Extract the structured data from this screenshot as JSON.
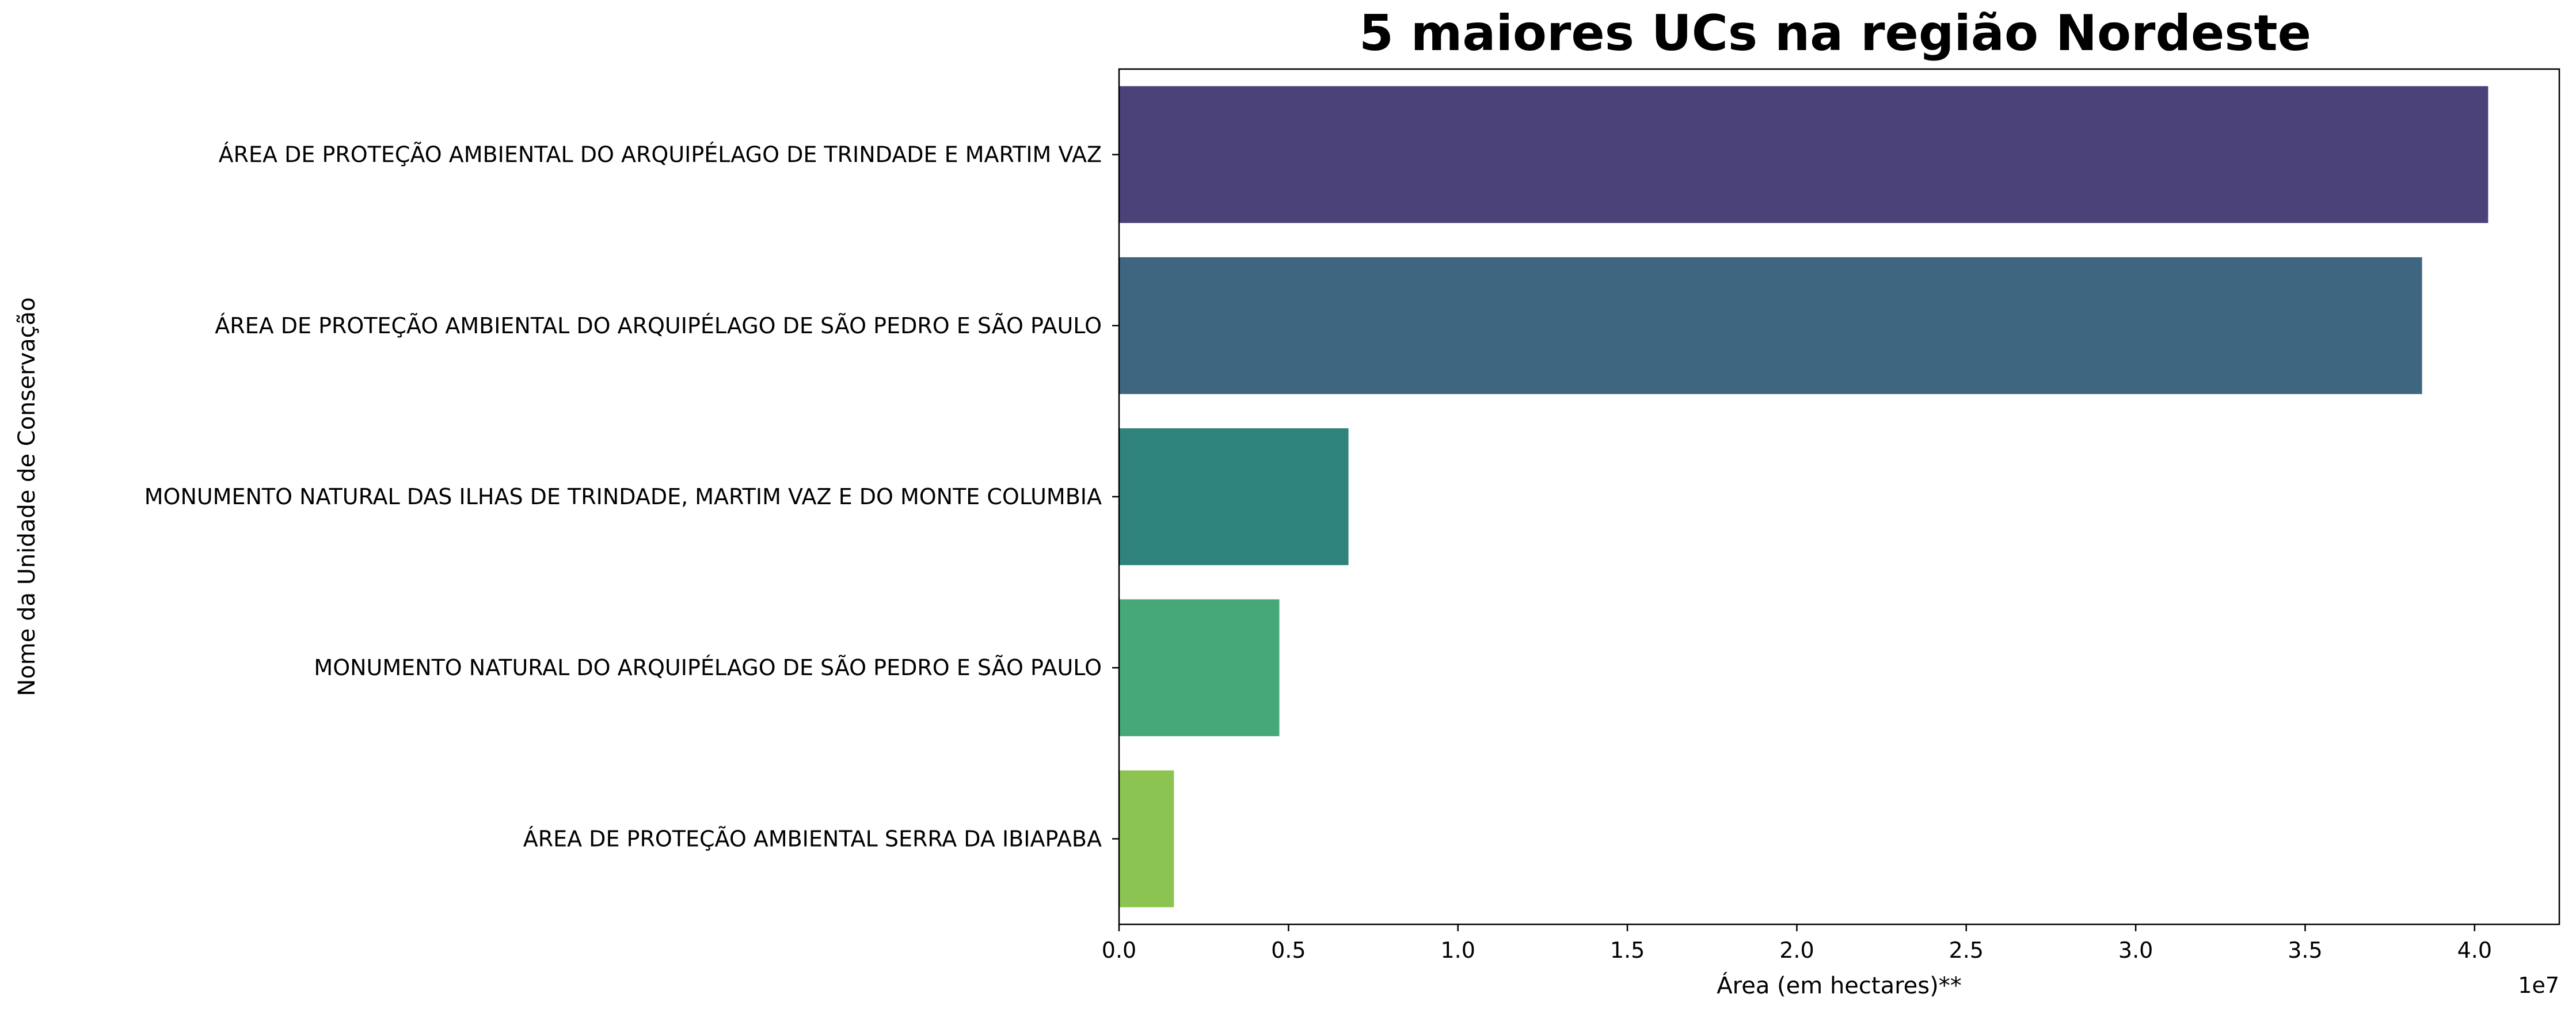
{
  "chart_data": {
    "type": "bar",
    "orientation": "horizontal",
    "title": "5 maiores UCs na região Nordeste",
    "xlabel": "Área (em hectares)**",
    "ylabel": "Nome da Unidade de Conservação",
    "x_offset_label": "1e7",
    "x_ticks": [
      "0.0",
      "0.5",
      "1.0",
      "1.5",
      "2.0",
      "2.5",
      "3.0",
      "3.5",
      "4.0"
    ],
    "xlim": [
      0,
      42500000
    ],
    "grid": false,
    "categories": [
      "ÁREA DE PROTEÇÃO AMBIENTAL DO ARQUIPÉLAGO DE TRINDADE E MARTIM VAZ",
      "ÁREA DE PROTEÇÃO AMBIENTAL DO ARQUIPÉLAGO DE SÃO PEDRO E SÃO PAULO",
      "MONUMENTO NATURAL DAS ILHAS DE TRINDADE, MARTIM VAZ E DO MONTE COLUMBIA",
      "MONUMENTO NATURAL DO ARQUIPÉLAGO DE SÃO PEDRO E SÃO PAULO",
      "ÁREA DE PROTEÇÃO AMBIENTAL SERRA DA IBIAPABA"
    ],
    "values": [
      40400000,
      38450000,
      6770000,
      4730000,
      1620000
    ],
    "colors": [
      "#4b4279",
      "#3f6681",
      "#2e837d",
      "#46a777",
      "#8cc452"
    ]
  }
}
